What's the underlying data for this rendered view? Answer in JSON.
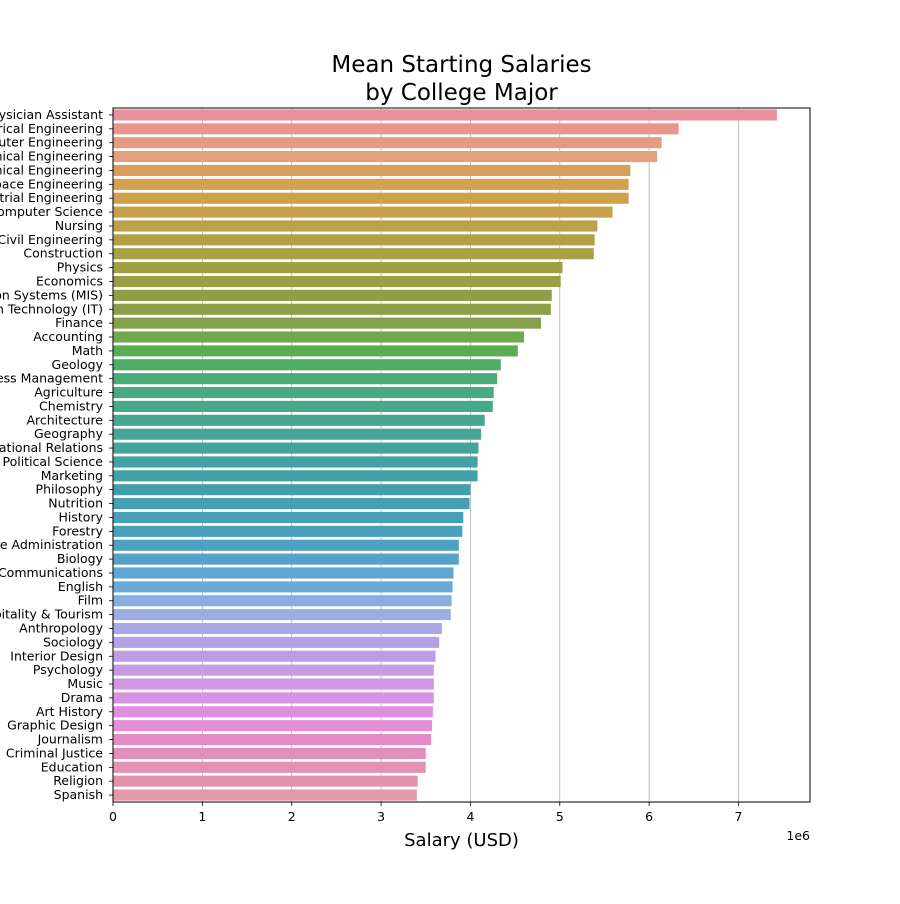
{
  "chart_data": {
    "type": "bar",
    "orientation": "horizontal",
    "title_lines": [
      "Mean Starting Salaries",
      "by College Major"
    ],
    "xlabel": "Salary (USD)",
    "ylabel": "",
    "x_scale_label": "1e6",
    "x_scale_factor": 1000000,
    "xlim": [
      0,
      7800000
    ],
    "x_ticks": [
      0,
      1,
      2,
      3,
      4,
      5,
      6,
      7
    ],
    "grid": "x",
    "categories": [
      "Physician Assistant",
      "Electrical Engineering",
      "Computer Engineering",
      "Chemical Engineering",
      "Mechanical Engineering",
      "Aerospace Engineering",
      "Industrial Engineering",
      "Computer Science",
      "Nursing",
      "Civil Engineering",
      "Construction",
      "Physics",
      "Economics",
      "Management Information Systems (MIS)",
      "Information Technology (IT)",
      "Finance",
      "Accounting",
      "Math",
      "Geology",
      "Business Management",
      "Agriculture",
      "Chemistry",
      "Architecture",
      "Geography",
      "International Relations",
      "Political Science",
      "Marketing",
      "Philosophy",
      "Nutrition",
      "History",
      "Forestry",
      "Health Care Administration",
      "Biology",
      "Communications",
      "English",
      "Film",
      "Hospitality & Tourism",
      "Anthropology",
      "Sociology",
      "Interior Design",
      "Psychology",
      "Music",
      "Drama",
      "Art History",
      "Graphic Design",
      "Journalism",
      "Criminal Justice",
      "Education",
      "Religion",
      "Spanish"
    ],
    "values": [
      7430000,
      6330000,
      6140000,
      6090000,
      5790000,
      5770000,
      5770000,
      5590000,
      5420000,
      5390000,
      5380000,
      5030000,
      5010000,
      4910000,
      4900000,
      4790000,
      4600000,
      4530000,
      4340000,
      4300000,
      4260000,
      4250000,
      4160000,
      4120000,
      4090000,
      4080000,
      4080000,
      4000000,
      3990000,
      3920000,
      3910000,
      3870000,
      3870000,
      3810000,
      3800000,
      3790000,
      3780000,
      3680000,
      3650000,
      3610000,
      3590000,
      3590000,
      3590000,
      3580000,
      3570000,
      3560000,
      3500000,
      3500000,
      3410000,
      3400000
    ],
    "bar_colors": [
      "#e8919c",
      "#e8968a",
      "#e59b80",
      "#e3a07a",
      "#d99e5c",
      "#d6a052",
      "#cfa04c",
      "#c6a04a",
      "#bca04a",
      "#b29f48",
      "#a8a046",
      "#a19f44",
      "#999f44",
      "#919f44",
      "#8aa046",
      "#83a14a",
      "#72a84c",
      "#5aad50",
      "#4eac68",
      "#48ab7a",
      "#47aa84",
      "#46a98a",
      "#46a790",
      "#45a596",
      "#44a39c",
      "#44a1a2",
      "#44a0a7",
      "#449fad",
      "#45a0b2",
      "#48a0b8",
      "#4aa0bd",
      "#4ea1c3",
      "#54a2c8",
      "#5ea6d3",
      "#6aa9da",
      "#88aee0",
      "#9bade3",
      "#aaa7e6",
      "#b3a3e6",
      "#bb9fe6",
      "#c59be7",
      "#d096e4",
      "#d892e4",
      "#e08fe0",
      "#e48ed6",
      "#e48ccb",
      "#e48ebd",
      "#e391b4",
      "#e394ad",
      "#e398a8"
    ]
  }
}
